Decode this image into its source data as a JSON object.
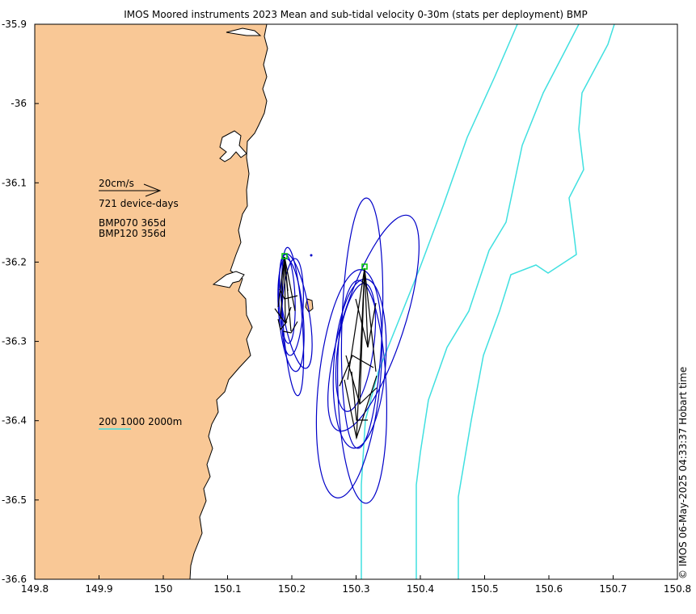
{
  "title": "IMOS Moored instruments 2023 Mean and sub-tidal velocity 0-30m (stats per deployment) BMP",
  "timestamp": "© IMOS 06-May-2025 04:33:37 Hobart time",
  "legend": {
    "scale_label": "20cm/s",
    "device_days": "721 device-days",
    "moorings": [
      "BMP070 365d",
      "BMP120 356d"
    ],
    "isobaths_label": "200 1000 2000m"
  },
  "colors": {
    "land": "#f9c896",
    "coast": "#000000",
    "isobath": "#40e0e0",
    "ellipse": "#0000c8",
    "vector": "#000000",
    "station": "#00c800"
  },
  "chart_data": {
    "type": "map",
    "x_ticks": [
      "149.8",
      "149.9",
      "150",
      "150.1",
      "150.2",
      "150.3",
      "150.4",
      "150.5",
      "150.6",
      "150.7",
      "150.8"
    ],
    "y_ticks": [
      "-35.9",
      "-36",
      "-36.1",
      "-36.2",
      "-36.3",
      "-36.4",
      "-36.5",
      "-36.6"
    ],
    "xlim": [
      149.8,
      150.8
    ],
    "ylim": [
      -36.6,
      -35.9
    ],
    "stations": [
      {
        "name": "BMP070",
        "lon": 150.19,
        "lat": -36.19
      },
      {
        "name": "BMP120",
        "lon": 150.315,
        "lat": -36.205
      }
    ]
  }
}
